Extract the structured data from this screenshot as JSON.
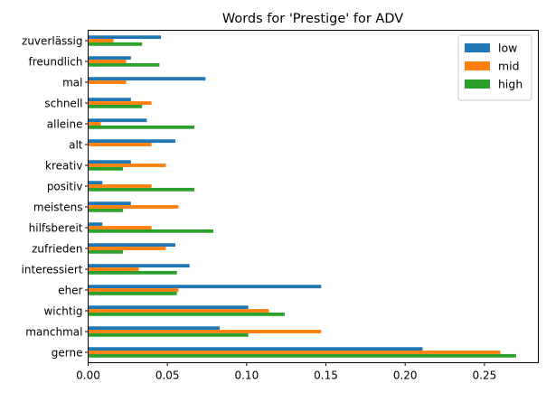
{
  "chart_data": {
    "type": "bar",
    "orientation": "horizontal",
    "title": "Words for 'Prestige' for ADV",
    "xlabel": "",
    "ylabel": "",
    "xlim": [
      0,
      0.284
    ],
    "x_ticks": [
      "0.00",
      "0.05",
      "0.10",
      "0.15",
      "0.20",
      "0.25"
    ],
    "categories": [
      "gerne",
      "manchmal",
      "wichtig",
      "eher",
      "interessiert",
      "zufrieden",
      "hilfsbereit",
      "meistens",
      "positiv",
      "kreativ",
      "alt",
      "alleine",
      "schnell",
      "mal",
      "freundlich",
      "zuverlässig"
    ],
    "series": [
      {
        "name": "low",
        "color": "#1f77b4",
        "values": [
          0.211,
          0.083,
          0.101,
          0.147,
          0.064,
          0.055,
          0.009,
          0.027,
          0.009,
          0.027,
          0.055,
          0.037,
          0.027,
          0.074,
          0.027,
          0.046
        ]
      },
      {
        "name": "mid",
        "color": "#ff7f0e",
        "values": [
          0.26,
          0.147,
          0.114,
          0.057,
          0.032,
          0.049,
          0.04,
          0.057,
          0.04,
          0.049,
          0.04,
          0.008,
          0.04,
          0.024,
          0.024,
          0.016
        ]
      },
      {
        "name": "high",
        "color": "#2ca02c",
        "values": [
          0.27,
          0.101,
          0.124,
          0.056,
          0.056,
          0.022,
          0.079,
          0.022,
          0.067,
          0.022,
          0.0,
          0.067,
          0.034,
          0.0,
          0.045,
          0.034
        ]
      }
    ],
    "legend": "top-right",
    "grid": false
  }
}
